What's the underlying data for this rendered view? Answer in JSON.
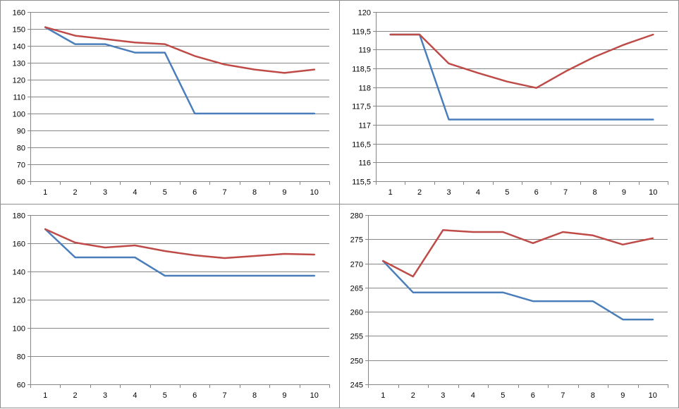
{
  "colors": {
    "series_blue": "#4a7ebb",
    "series_red": "#be4b48",
    "grid": "#868686",
    "axis": "#868686"
  },
  "chart_data": [
    {
      "type": "line",
      "x": [
        1,
        2,
        3,
        4,
        5,
        6,
        7,
        8,
        9,
        10
      ],
      "ylim": [
        60,
        160
      ],
      "yticks": [
        60,
        70,
        80,
        90,
        100,
        110,
        120,
        130,
        140,
        150,
        160
      ],
      "ytick_labels": [
        "60",
        "70",
        "80",
        "90",
        "100",
        "110",
        "120",
        "130",
        "140",
        "150",
        "160"
      ],
      "xtick_labels": [
        "1",
        "2",
        "3",
        "4",
        "5",
        "6",
        "7",
        "8",
        "9",
        "10"
      ],
      "grid": true,
      "series": [
        {
          "color": "#4a7ebb",
          "values": [
            151,
            141,
            141,
            136,
            136,
            100,
            100,
            100,
            100,
            100
          ]
        },
        {
          "color": "#be4b48",
          "values": [
            151,
            146,
            144,
            142,
            141,
            134,
            129,
            126,
            124,
            126
          ]
        }
      ]
    },
    {
      "type": "line",
      "x": [
        1,
        2,
        3,
        4,
        5,
        6,
        7,
        8,
        9,
        10
      ],
      "ylim": [
        115.5,
        120
      ],
      "yticks": [
        115.5,
        116,
        116.5,
        117,
        117.5,
        118,
        118.5,
        119,
        119.5,
        120
      ],
      "ytick_labels": [
        "115,5",
        "116",
        "116,5",
        "117",
        "117,5",
        "118",
        "118,5",
        "119",
        "119,5",
        "120"
      ],
      "xtick_labels": [
        "1",
        "2",
        "3",
        "4",
        "5",
        "6",
        "7",
        "8",
        "9",
        "10"
      ],
      "grid": true,
      "series": [
        {
          "color": "#4a7ebb",
          "values": [
            119.4,
            119.4,
            117.14,
            117.14,
            117.14,
            117.14,
            117.14,
            117.14,
            117.14,
            117.14
          ]
        },
        {
          "color": "#be4b48",
          "values": [
            119.4,
            119.4,
            118.63,
            118.38,
            118.15,
            117.98,
            118.42,
            118.81,
            119.13,
            119.4
          ]
        }
      ]
    },
    {
      "type": "line",
      "x": [
        1,
        2,
        3,
        4,
        5,
        6,
        7,
        8,
        9,
        10
      ],
      "ylim": [
        60,
        180
      ],
      "yticks": [
        60,
        80,
        100,
        120,
        140,
        160,
        180
      ],
      "ytick_labels": [
        "60",
        "80",
        "100",
        "120",
        "140",
        "160",
        "180"
      ],
      "xtick_labels": [
        "1",
        "2",
        "3",
        "4",
        "5",
        "6",
        "7",
        "8",
        "9",
        "10"
      ],
      "grid": true,
      "series": [
        {
          "color": "#4a7ebb",
          "values": [
            170,
            150,
            150,
            150,
            137,
            137,
            137,
            137,
            137,
            137
          ]
        },
        {
          "color": "#be4b48",
          "values": [
            170,
            160.5,
            157,
            158.5,
            154.5,
            151.5,
            149.5,
            151,
            152.5,
            152
          ]
        }
      ]
    },
    {
      "type": "line",
      "x": [
        1,
        2,
        3,
        4,
        5,
        6,
        7,
        8,
        9,
        10
      ],
      "ylim": [
        245,
        280
      ],
      "yticks": [
        245,
        250,
        255,
        260,
        265,
        270,
        275,
        280
      ],
      "ytick_labels": [
        "245",
        "250",
        "255",
        "260",
        "265",
        "270",
        "275",
        "280"
      ],
      "xtick_labels": [
        "1",
        "2",
        "3",
        "4",
        "5",
        "6",
        "7",
        "8",
        "9",
        "10"
      ],
      "grid": true,
      "series": [
        {
          "color": "#4a7ebb",
          "values": [
            270.5,
            264,
            264,
            264,
            264,
            262.2,
            262.2,
            262.2,
            258.4,
            258.4
          ]
        },
        {
          "color": "#be4b48",
          "values": [
            270.5,
            267.3,
            276.9,
            276.5,
            276.5,
            274.2,
            276.5,
            275.8,
            273.9,
            275.2
          ]
        }
      ]
    }
  ]
}
